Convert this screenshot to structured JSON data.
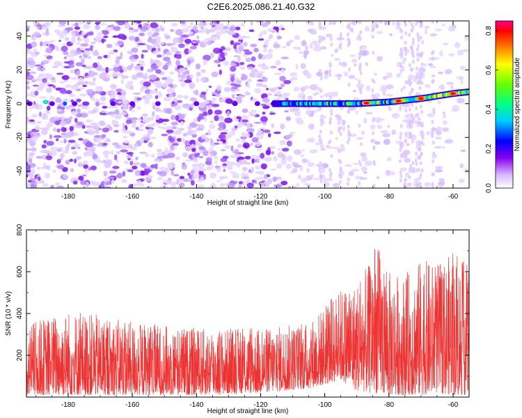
{
  "title": "C2E6.2025.086.21.40.G32",
  "chart_data": [
    {
      "type": "heatmap",
      "xlabel": "Height of straight line (km)",
      "ylabel": "Frequency (Hz)",
      "xlim": [
        -193,
        -55
      ],
      "ylim": [
        -50,
        49
      ],
      "x_ticks": [
        -180,
        -160,
        -140,
        -120,
        -100,
        -80,
        -60
      ],
      "y_ticks": [
        -40,
        -20,
        0,
        20,
        40
      ],
      "colorbar": {
        "label": "Normalized spectral amplitude",
        "range": [
          0,
          0.85
        ],
        "ticks": [
          0.0,
          0.2,
          0.4,
          0.6,
          0.8
        ],
        "colors": [
          "#ffffff",
          "#cc99ff",
          "#8800ee",
          "#0000ff",
          "#00ffff",
          "#00ff00",
          "#ffff00",
          "#ff8800",
          "#ff0000",
          "#ff00aa"
        ]
      },
      "ridge": {
        "description_points_x": [
          -115,
          -100,
          -90,
          -80,
          -70,
          -60,
          -55
        ],
        "description_points_y": [
          0,
          0,
          0,
          1,
          3,
          6,
          7
        ],
        "peak_amplitude_x": [
          -87,
          -77,
          -70,
          -60
        ],
        "peak_amplitude_y": [
          0.85,
          0.7,
          0.65,
          0.5
        ]
      }
    },
    {
      "type": "line",
      "xlabel": "Height of straight line (km)",
      "ylabel": "SNR (10 * v/v)",
      "xlim": [
        -193,
        -55
      ],
      "ylim": [
        0,
        800
      ],
      "x_ticks": [
        -180,
        -160,
        -140,
        -120,
        -100,
        -80,
        -60
      ],
      "y_ticks": [
        200,
        400,
        600,
        800
      ],
      "series": [
        {
          "color": "#ee3333",
          "envelope_x": [
            -193,
            -180,
            -160,
            -140,
            -120,
            -105,
            -100,
            -95,
            -90,
            -86,
            -85,
            -80,
            -75,
            -70,
            -65,
            -60,
            -55
          ],
          "envelope_max": [
            350,
            420,
            360,
            330,
            330,
            360,
            440,
            520,
            560,
            640,
            790,
            600,
            590,
            660,
            640,
            690,
            640
          ],
          "envelope_min": [
            10,
            10,
            10,
            10,
            20,
            40,
            60,
            80,
            30,
            20,
            20,
            10,
            10,
            10,
            20,
            10,
            10
          ]
        }
      ]
    }
  ]
}
